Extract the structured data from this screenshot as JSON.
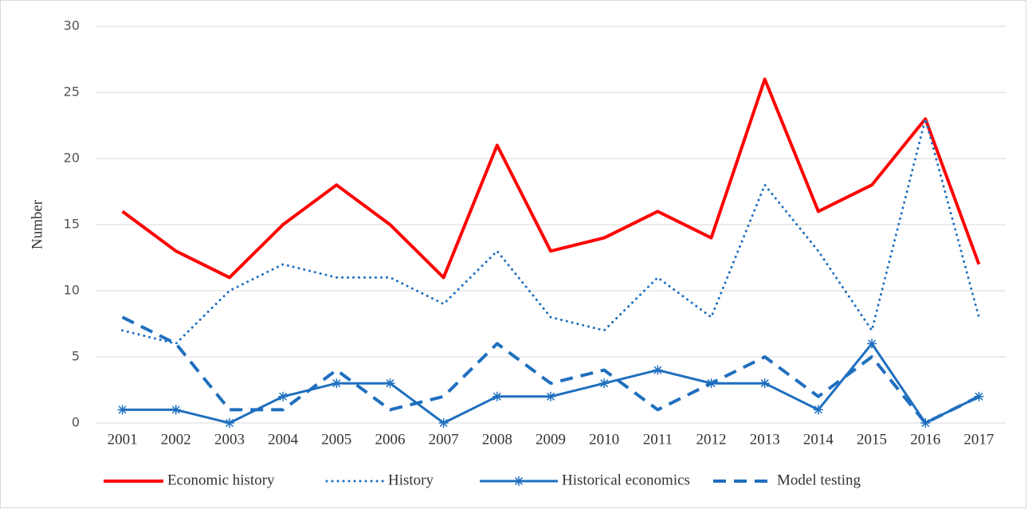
{
  "chart_data": {
    "type": "line",
    "y_label": "Number",
    "categories": [
      "2001",
      "2002",
      "2003",
      "2004",
      "2005",
      "2006",
      "2007",
      "2008",
      "2009",
      "2010",
      "2011",
      "2012",
      "2013",
      "2014",
      "2015",
      "2016",
      "2017"
    ],
    "series": [
      {
        "name": "Economic history",
        "color": "#ff0000",
        "style": "solid",
        "width": 4,
        "values": [
          16,
          13,
          11,
          15,
          18,
          15,
          11,
          21,
          13,
          14,
          16,
          14,
          26,
          16,
          18,
          23,
          12
        ]
      },
      {
        "name": "History",
        "color": "#1f6fbf",
        "style": "dotted",
        "width": 3,
        "values": [
          7,
          6,
          10,
          12,
          11,
          11,
          9,
          13,
          8,
          7,
          11,
          8,
          18,
          13,
          7,
          23,
          8
        ]
      },
      {
        "name": "Historical economics",
        "color": "#1f6fbf",
        "style": "solid",
        "width": 3,
        "marker": "asterisk",
        "values": [
          1,
          1,
          0,
          2,
          3,
          3,
          0,
          2,
          2,
          3,
          4,
          3,
          3,
          1,
          6,
          0,
          2
        ]
      },
      {
        "name": "Model testing",
        "color": "#1f6fbf",
        "style": "dashed",
        "width": 4,
        "values": [
          8,
          6,
          1,
          1,
          4,
          1,
          2,
          6,
          3,
          4,
          1,
          3,
          5,
          2,
          5,
          0,
          2
        ]
      }
    ],
    "ylim": [
      0,
      30
    ],
    "yticks": [
      0,
      5,
      10,
      15,
      20,
      25,
      30
    ],
    "grid": true,
    "legend": "bottom"
  }
}
